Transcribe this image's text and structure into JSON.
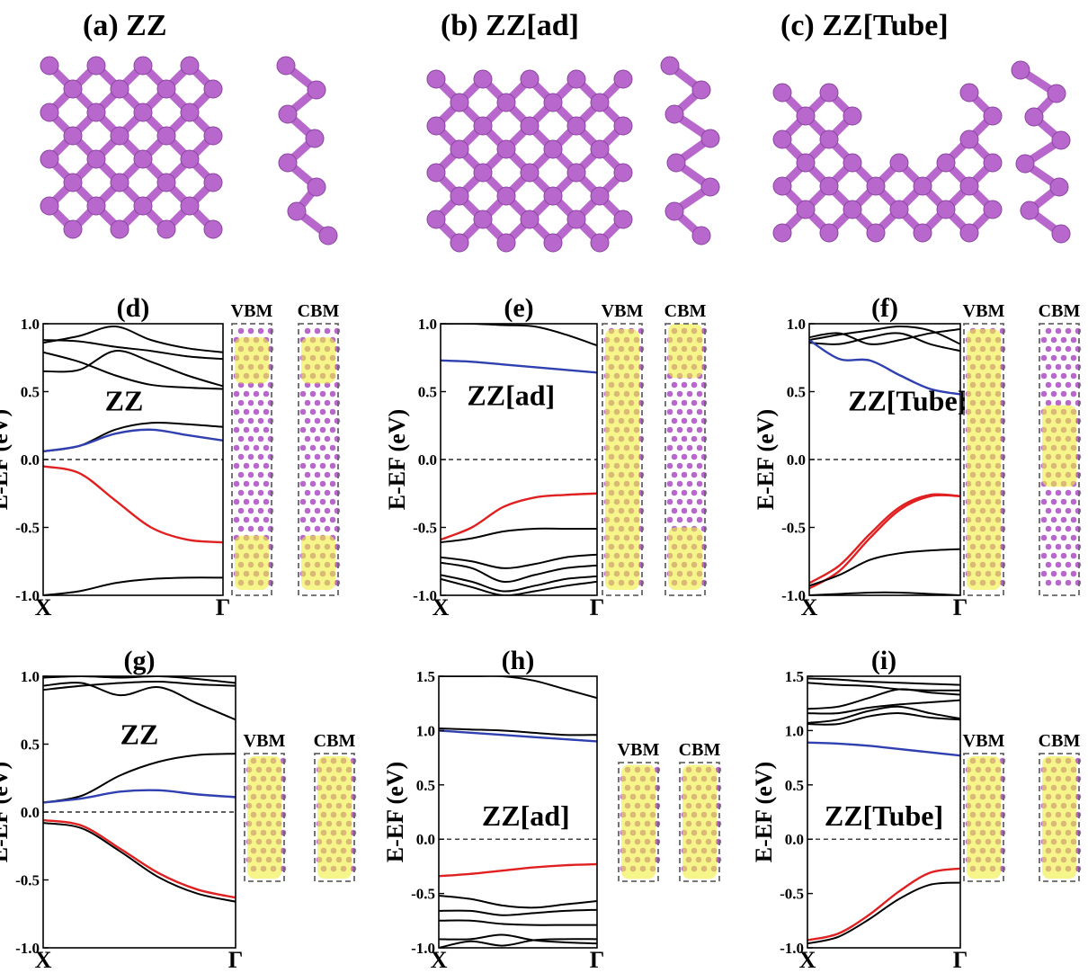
{
  "figure": {
    "structures": [
      {
        "id": "a",
        "title": "(a) ZZ"
      },
      {
        "id": "b",
        "title": "(b) ZZ[ad]"
      },
      {
        "id": "c",
        "title": "(c) ZZ[Tube]"
      }
    ],
    "atom_color": "#b867cc",
    "orbital_color": "#f0ee3c",
    "vbm_label": "VBM",
    "cbm_label": "CBM"
  },
  "chart_data": [
    {
      "id": "d",
      "type": "line",
      "title": "(d)",
      "inset": "ZZ",
      "ylabel": "E-EF (eV)",
      "ylim": [
        -1.0,
        1.0
      ],
      "yticks": [
        "1.0",
        "0.5",
        "0.0",
        "-0.5",
        "-1.0"
      ],
      "xticks": [
        "X",
        "Γ"
      ],
      "series": [
        {
          "color": "#000000",
          "y": [
            0.88,
            0.87,
            0.83,
            0.8,
            0.76,
            0.74
          ]
        },
        {
          "color": "#000000",
          "y": [
            0.86,
            0.91,
            0.98,
            0.88,
            0.82,
            0.79
          ]
        },
        {
          "color": "#000000",
          "y": [
            0.65,
            0.66,
            0.8,
            0.72,
            0.62,
            0.54
          ]
        },
        {
          "color": "#000000",
          "y": [
            0.79,
            0.72,
            0.62,
            0.55,
            0.53,
            0.52
          ]
        },
        {
          "color": "#000000",
          "y": [
            0.06,
            0.1,
            0.22,
            0.27,
            0.26,
            0.24
          ]
        },
        {
          "color": "#3040b0",
          "y": [
            0.06,
            0.1,
            0.19,
            0.22,
            0.18,
            0.14
          ]
        },
        {
          "color": "#e02020",
          "y": [
            -0.05,
            -0.1,
            -0.3,
            -0.5,
            -0.59,
            -0.61
          ]
        },
        {
          "color": "#000000",
          "y": [
            -1.0,
            -0.97,
            -0.91,
            -0.88,
            -0.87,
            -0.87
          ]
        }
      ]
    },
    {
      "id": "e",
      "type": "line",
      "title": "(e)",
      "inset": "ZZ[ad]",
      "ylabel": "E-EF (eV)",
      "ylim": [
        -1.0,
        1.0
      ],
      "yticks": [
        "1.0",
        "0.5",
        "0.0",
        "-0.5",
        "-1.0"
      ],
      "xticks": [
        "X",
        "Γ"
      ],
      "series": [
        {
          "color": "#000000",
          "y": [
            1.0,
            1.0,
            0.99,
            0.98,
            0.92,
            0.84
          ]
        },
        {
          "color": "#3040b0",
          "y": [
            0.73,
            0.72,
            0.7,
            0.68,
            0.66,
            0.64
          ]
        },
        {
          "color": "#e02020",
          "y": [
            -0.59,
            -0.5,
            -0.35,
            -0.28,
            -0.26,
            -0.25
          ]
        },
        {
          "color": "#000000",
          "y": [
            -0.61,
            -0.58,
            -0.53,
            -0.51,
            -0.51,
            -0.51
          ]
        },
        {
          "color": "#000000",
          "y": [
            -0.72,
            -0.75,
            -0.8,
            -0.77,
            -0.72,
            -0.7
          ]
        },
        {
          "color": "#000000",
          "y": [
            -0.76,
            -0.8,
            -0.9,
            -0.85,
            -0.8,
            -0.78
          ]
        },
        {
          "color": "#000000",
          "y": [
            -0.85,
            -0.9,
            -0.97,
            -0.93,
            -0.88,
            -0.86
          ]
        },
        {
          "color": "#000000",
          "y": [
            -0.88,
            -0.94,
            -1.0,
            -0.97,
            -0.93,
            -0.9
          ]
        }
      ]
    },
    {
      "id": "f",
      "type": "line",
      "title": "(f)",
      "inset": "ZZ[Tube]",
      "ylabel": "E-EF (eV)",
      "ylim": [
        -1.0,
        1.0
      ],
      "yticks": [
        "1.0",
        "0.5",
        "0.0",
        "-0.5",
        "-1.0"
      ],
      "xticks": [
        "X",
        "Γ"
      ],
      "series": [
        {
          "color": "#000000",
          "y": [
            0.88,
            0.92,
            0.95,
            0.98,
            0.95,
            0.85
          ]
        },
        {
          "color": "#000000",
          "y": [
            0.86,
            0.85,
            0.9,
            0.93,
            0.85,
            0.8
          ]
        },
        {
          "color": "#000000",
          "y": [
            0.9,
            0.93,
            0.85,
            0.88,
            0.93,
            0.96
          ]
        },
        {
          "color": "#3040b0",
          "y": [
            0.88,
            0.74,
            0.73,
            0.62,
            0.52,
            0.48
          ]
        },
        {
          "color": "#e02020",
          "y": [
            -0.91,
            -0.78,
            -0.55,
            -0.35,
            -0.26,
            -0.27
          ]
        },
        {
          "color": "#e02020",
          "y": [
            -0.95,
            -0.82,
            -0.58,
            -0.37,
            -0.27,
            -0.27
          ]
        },
        {
          "color": "#000000",
          "y": [
            -0.93,
            -0.85,
            -0.74,
            -0.69,
            -0.67,
            -0.66
          ]
        },
        {
          "color": "#000000",
          "y": [
            -1.0,
            -0.99,
            -0.98,
            -0.98,
            -0.99,
            -1.0
          ]
        }
      ]
    },
    {
      "id": "g",
      "type": "line",
      "title": "(g)",
      "inset": "ZZ",
      "ylabel": "E-EF (eV)",
      "ylim": [
        -1.0,
        1.0
      ],
      "yticks": [
        "1.0",
        "0.5",
        "0.0",
        "-0.5",
        "-1.0"
      ],
      "xticks": [
        "X",
        "Γ"
      ],
      "series": [
        {
          "color": "#000000",
          "y": [
            0.99,
            1.0,
            0.99,
            1.0,
            0.98,
            0.95
          ]
        },
        {
          "color": "#000000",
          "y": [
            0.93,
            0.95,
            0.86,
            0.92,
            0.8,
            0.68
          ]
        },
        {
          "color": "#000000",
          "y": [
            0.9,
            0.93,
            0.95,
            0.96,
            0.94,
            0.93
          ]
        },
        {
          "color": "#000000",
          "y": [
            0.07,
            0.12,
            0.27,
            0.37,
            0.42,
            0.43
          ]
        },
        {
          "color": "#3040b0",
          "y": [
            0.07,
            0.1,
            0.15,
            0.16,
            0.13,
            0.11
          ]
        },
        {
          "color": "#e02020",
          "y": [
            -0.06,
            -0.1,
            -0.27,
            -0.45,
            -0.57,
            -0.63
          ]
        },
        {
          "color": "#000000",
          "y": [
            -0.08,
            -0.12,
            -0.29,
            -0.48,
            -0.6,
            -0.66
          ]
        }
      ]
    },
    {
      "id": "h",
      "type": "line",
      "title": "(h)",
      "inset": "ZZ[ad]",
      "ylabel": "E-EF (eV)",
      "ylim": [
        -1.0,
        1.5
      ],
      "yticks": [
        "1.5",
        "1.0",
        "0.5",
        "0.0",
        "-0.5",
        "-1.0"
      ],
      "xticks": [
        "X",
        "Γ"
      ],
      "series": [
        {
          "color": "#000000",
          "y": [
            1.5,
            1.5,
            1.5,
            1.46,
            1.38,
            1.3
          ]
        },
        {
          "color": "#000000",
          "y": [
            1.02,
            1.01,
            1.0,
            0.98,
            0.96,
            0.96
          ]
        },
        {
          "color": "#3040b0",
          "y": [
            1.0,
            0.98,
            0.96,
            0.94,
            0.92,
            0.9
          ]
        },
        {
          "color": "#e02020",
          "y": [
            -0.34,
            -0.32,
            -0.29,
            -0.26,
            -0.24,
            -0.23
          ]
        },
        {
          "color": "#000000",
          "y": [
            -0.52,
            -0.55,
            -0.61,
            -0.63,
            -0.6,
            -0.57
          ]
        },
        {
          "color": "#000000",
          "y": [
            -0.66,
            -0.66,
            -0.7,
            -0.68,
            -0.66,
            -0.65
          ]
        },
        {
          "color": "#000000",
          "y": [
            -0.75,
            -0.75,
            -0.78,
            -0.79,
            -0.79,
            -0.79
          ]
        },
        {
          "color": "#000000",
          "y": [
            -0.92,
            -0.92,
            -0.88,
            -0.93,
            -0.95,
            -0.96
          ]
        },
        {
          "color": "#000000",
          "y": [
            -1.0,
            -0.94,
            -0.98,
            -0.93,
            -0.92,
            -0.92
          ]
        }
      ]
    },
    {
      "id": "i",
      "type": "line",
      "title": "(i)",
      "inset": "ZZ[Tube]",
      "ylabel": "E-EF (eV)",
      "ylim": [
        -1.0,
        1.5
      ],
      "yticks": [
        "1.5",
        "1.0",
        "0.5",
        "0.0",
        "-0.5",
        "-1.0"
      ],
      "xticks": [
        "X",
        "Γ"
      ],
      "series": [
        {
          "color": "#000000",
          "y": [
            1.48,
            1.47,
            1.45,
            1.44,
            1.43,
            1.42
          ]
        },
        {
          "color": "#000000",
          "y": [
            1.44,
            1.42,
            1.41,
            1.38,
            1.37,
            1.37
          ]
        },
        {
          "color": "#000000",
          "y": [
            1.2,
            1.22,
            1.3,
            1.38,
            1.35,
            1.33
          ]
        },
        {
          "color": "#000000",
          "y": [
            1.16,
            1.16,
            1.21,
            1.24,
            1.26,
            1.28
          ]
        },
        {
          "color": "#000000",
          "y": [
            1.07,
            1.1,
            1.18,
            1.22,
            1.16,
            1.11
          ]
        },
        {
          "color": "#000000",
          "y": [
            1.06,
            1.06,
            1.13,
            1.16,
            1.12,
            1.1
          ]
        },
        {
          "color": "#3040b0",
          "y": [
            0.89,
            0.88,
            0.86,
            0.83,
            0.8,
            0.77
          ]
        },
        {
          "color": "#e02020",
          "y": [
            -0.93,
            -0.87,
            -0.7,
            -0.48,
            -0.31,
            -0.27
          ]
        },
        {
          "color": "#000000",
          "y": [
            -0.96,
            -0.9,
            -0.74,
            -0.55,
            -0.42,
            -0.4
          ]
        }
      ]
    }
  ]
}
